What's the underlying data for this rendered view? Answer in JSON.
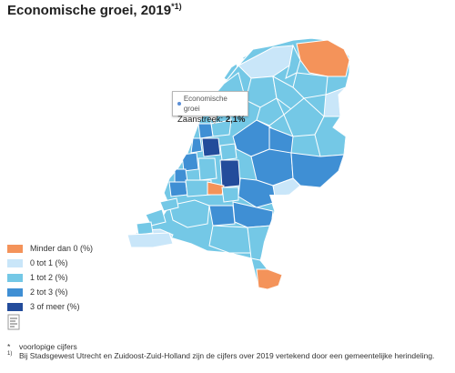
{
  "title": {
    "text": "Economische groei, 2019",
    "marker": "*1)"
  },
  "tooltip": {
    "series": "Economische groei",
    "region": "Zaanstreek:",
    "value": "2,1%",
    "dot_color": "#5b8fd6"
  },
  "legend": {
    "items": [
      {
        "label": "Minder dan 0 (%)",
        "color": "#f4935a"
      },
      {
        "label": "0 tot 1 (%)",
        "color": "#c9e6f9"
      },
      {
        "label": "1 tot 2 (%)",
        "color": "#74c8e6"
      },
      {
        "label": "2 tot 3 (%)",
        "color": "#3f8fd4"
      },
      {
        "label": "3 of meer (%)",
        "color": "#234c9b"
      }
    ]
  },
  "logo": {
    "icon": "cbs-logo-icon"
  },
  "footnotes": [
    {
      "mark": "*",
      "text": "voorlopige cijfers"
    },
    {
      "mark": "1)",
      "text": "Bij Stadsgewest Utrecht en Zuidoost-Zuid-Holland zijn de cijfers over 2019 vertekend door een gemeentelijke herindeling."
    }
  ]
}
